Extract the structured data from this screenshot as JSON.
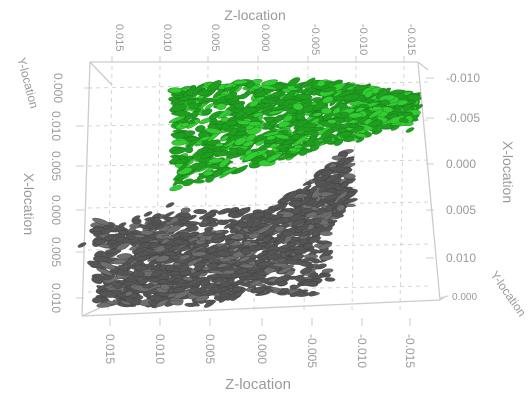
{
  "chart_data": {
    "type": "scatter",
    "subtype": "3d-ellipsoid-glyph-cloud",
    "title": "",
    "axes": {
      "z_top": {
        "label": "Z-location",
        "ticks": [
          "0.015",
          "0.010",
          "0.005",
          "0.000",
          "-0.005",
          "-0.010",
          "-0.015"
        ]
      },
      "z_bottom": {
        "label": "Z-location",
        "ticks": [
          "0.015",
          "0.010",
          "0.005",
          "0.000",
          "-0.005",
          "-0.010",
          "-0.015"
        ]
      },
      "x_left": {
        "label": "X-location",
        "ticks": [
          "0.010",
          "0.005",
          "0.000",
          "0.005",
          "0.010"
        ]
      },
      "x_right": {
        "label": "X-location",
        "ticks": [
          "-0.010",
          "-0.005",
          "0.000",
          "0.005",
          "0.010"
        ]
      },
      "y_topleft": {
        "label": "Y-location",
        "ticks": [
          "0.000"
        ]
      },
      "y_bottomright": {
        "label": "Y-location",
        "ticks": [
          "0.000"
        ]
      }
    },
    "grid": true,
    "series": [
      {
        "group": "upper",
        "color": "#1f9e1f",
        "highlight": "#33cc33"
      },
      {
        "group": "lower",
        "color": "#555555",
        "highlight": "#6e6e6e"
      }
    ]
  },
  "colors": {
    "axis": "#cccccc",
    "label": "#9a9a9a",
    "grid": "#d6d6d6"
  }
}
